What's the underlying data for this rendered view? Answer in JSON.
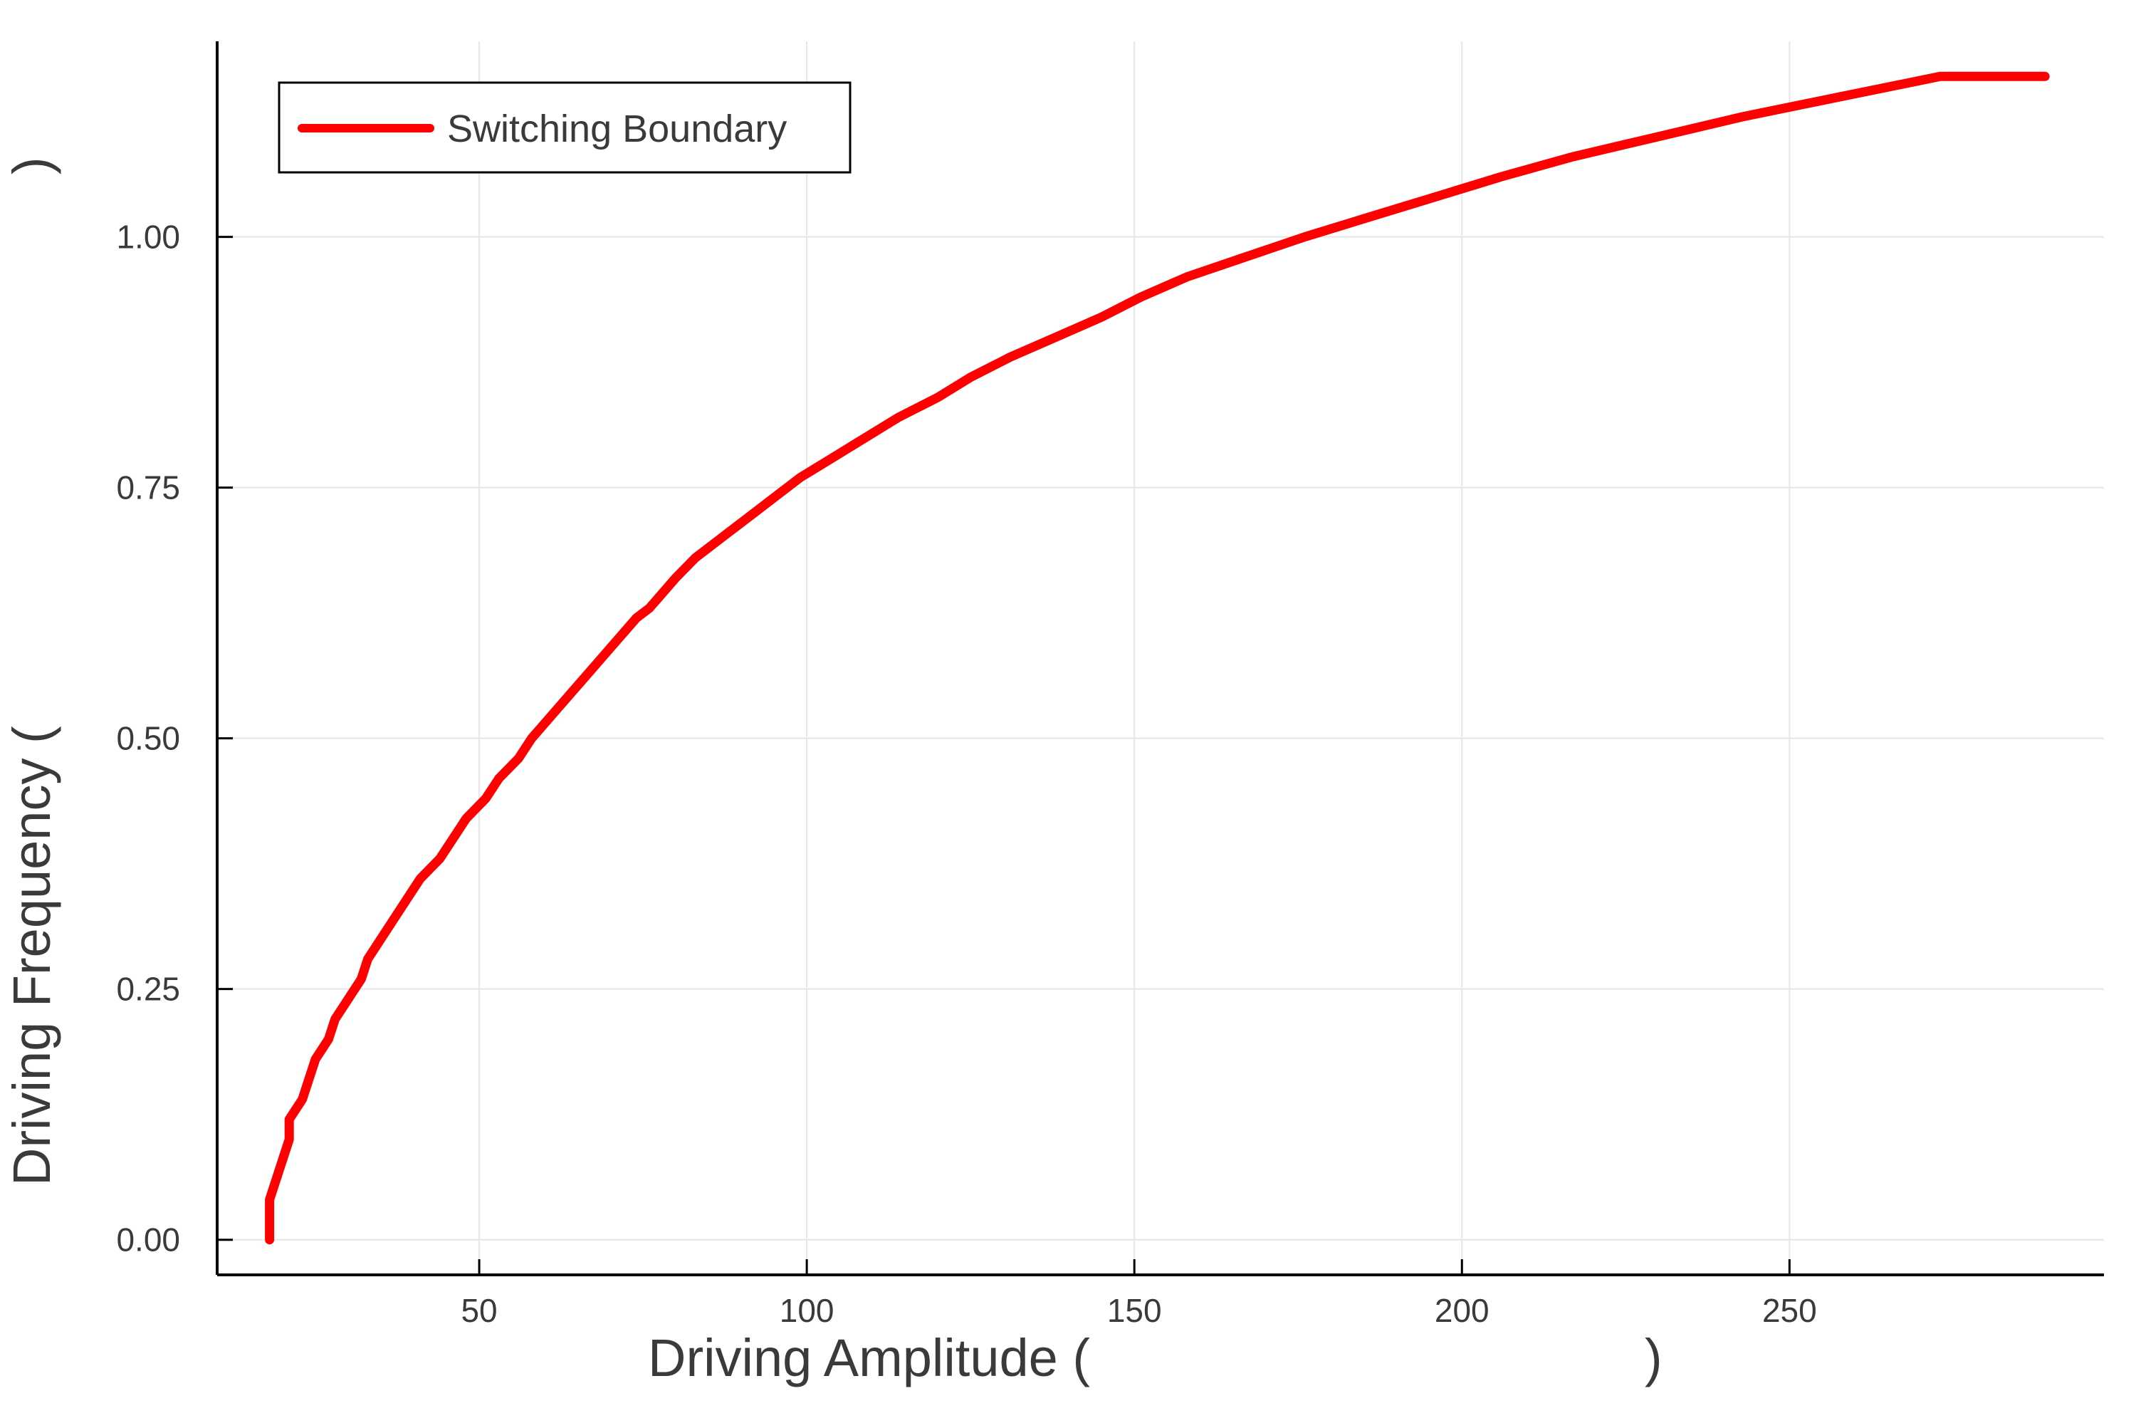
{
  "chart_data": {
    "type": "line",
    "xlabel": "Driving Amplitude (",
    "xlabel_close": ")",
    "ylabel": "Driving Frequency (",
    "ylabel_close": ")",
    "xlim": [
      10,
      298
    ],
    "ylim": [
      -0.035,
      1.195
    ],
    "xticks": [
      {
        "value": 50,
        "label": "50"
      },
      {
        "value": 100,
        "label": "100"
      },
      {
        "value": 150,
        "label": "150"
      },
      {
        "value": 200,
        "label": "200"
      },
      {
        "value": 250,
        "label": "250"
      }
    ],
    "yticks": [
      {
        "value": 0.0,
        "label": "0.00"
      },
      {
        "value": 0.25,
        "label": "0.25"
      },
      {
        "value": 0.5,
        "label": "0.50"
      },
      {
        "value": 0.75,
        "label": "0.75"
      },
      {
        "value": 1.0,
        "label": "1.00"
      }
    ],
    "grid": true,
    "legend_position": "top-left",
    "series": [
      {
        "name": "Switching Boundary",
        "color": "#ff0000",
        "x": [
          18,
          18,
          21,
          21,
          23,
          25,
          27,
          28,
          30,
          32,
          33,
          36,
          38,
          41,
          44,
          48,
          51,
          53,
          56,
          58,
          62,
          66,
          70,
          74,
          76,
          80,
          83,
          87,
          91,
          95,
          99,
          104,
          109,
          114,
          120,
          125,
          131,
          138,
          145,
          151,
          158,
          167,
          176,
          186,
          196,
          206,
          217,
          230,
          243,
          258,
          273,
          289
        ],
        "y": [
          0.0,
          0.04,
          0.1,
          0.12,
          0.14,
          0.18,
          0.2,
          0.22,
          0.24,
          0.26,
          0.28,
          0.31,
          0.33,
          0.36,
          0.38,
          0.42,
          0.44,
          0.46,
          0.48,
          0.5,
          0.53,
          0.56,
          0.59,
          0.62,
          0.63,
          0.66,
          0.68,
          0.7,
          0.72,
          0.74,
          0.76,
          0.78,
          0.8,
          0.82,
          0.84,
          0.86,
          0.88,
          0.9,
          0.92,
          0.94,
          0.96,
          0.98,
          1.0,
          1.02,
          1.04,
          1.06,
          1.08,
          1.1,
          1.12,
          1.14,
          1.16,
          1.16
        ]
      }
    ]
  }
}
